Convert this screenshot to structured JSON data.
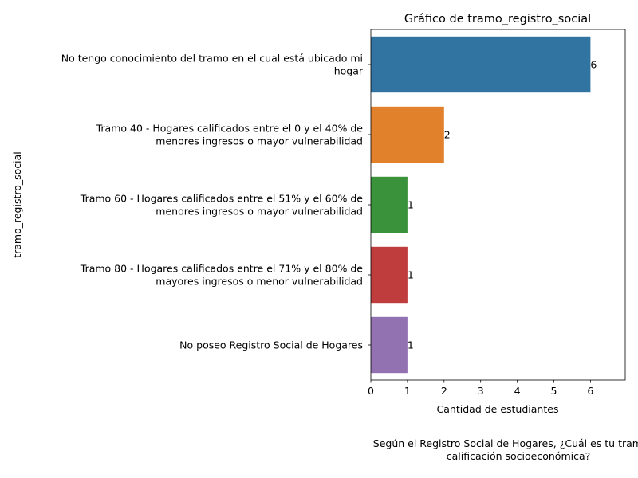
{
  "chart_data": {
    "type": "bar",
    "orientation": "horizontal",
    "title": "Gráfico de tramo_registro_social",
    "xlabel": "Cantidad de estudiantes",
    "ylabel": "tramo_registro_social",
    "xlim": [
      0,
      6.95
    ],
    "x_ticks": [
      "0",
      "1",
      "2",
      "3",
      "4",
      "5",
      "6"
    ],
    "categories": [
      [
        "No tengo conocimiento del tramo en el cual está ubicado mi",
        "hogar"
      ],
      [
        "Tramo 40 - Hogares calificados entre el 0 y el 40% de",
        "menores ingresos o mayor vulnerabilidad"
      ],
      [
        "Tramo 60 - Hogares calificados entre el 51% y el 60% de",
        "menores ingresos o mayor vulnerabilidad"
      ],
      [
        "Tramo 80 - Hogares calificados entre el 71% y el 80% de",
        "mayores ingresos o menor vulnerabilidad"
      ],
      [
        "No poseo Registro Social de Hogares"
      ]
    ],
    "values": [
      6,
      2,
      1,
      1,
      1
    ],
    "data_labels": [
      "6",
      "2",
      "1",
      "1",
      "1"
    ],
    "colors": [
      "#3274a1",
      "#e1812c",
      "#3a923a",
      "#c03d3e",
      "#9372b2"
    ],
    "grid": false,
    "legend": "none"
  },
  "footnote": {
    "line1": "Según el Registro Social de Hogares, ¿Cuál es tu tramo de",
    "line2": "calificación socioeconómica?"
  }
}
